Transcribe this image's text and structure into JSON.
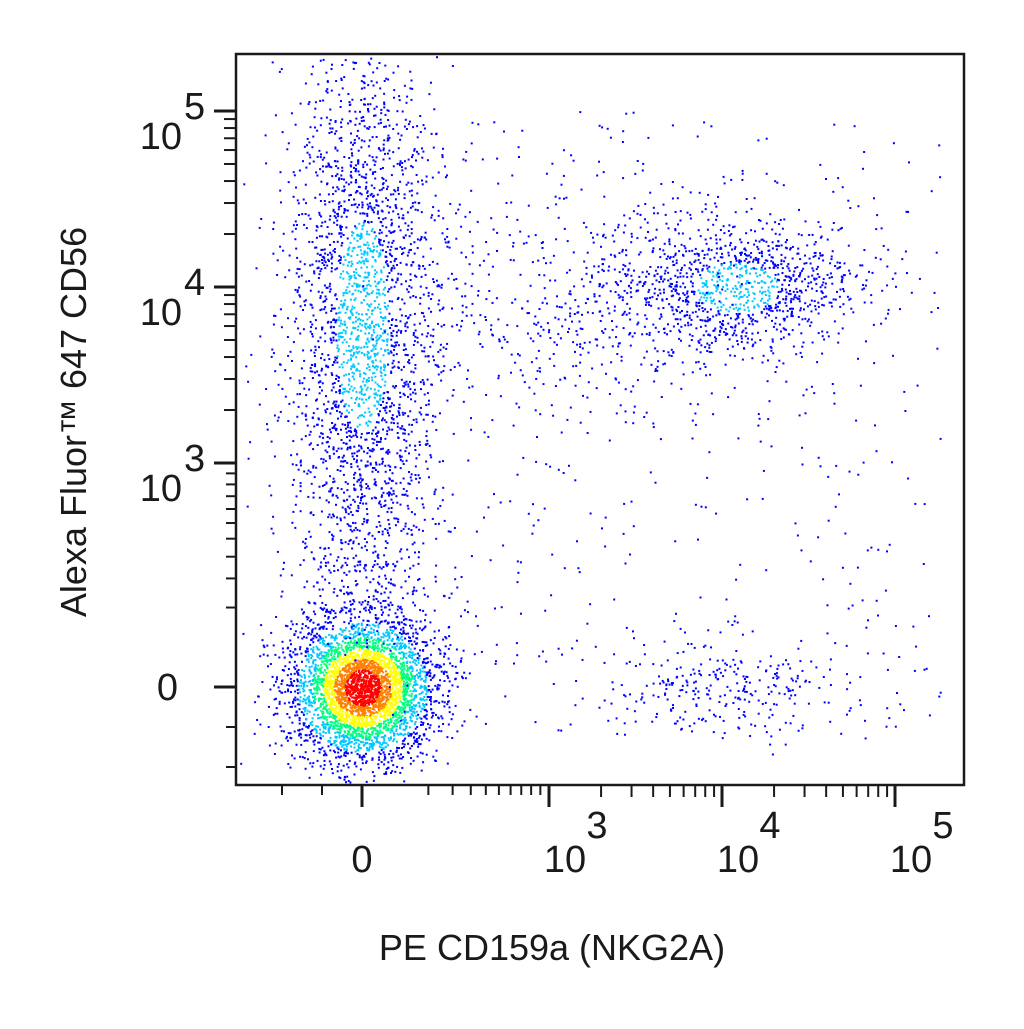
{
  "chart_data": {
    "type": "scatter",
    "subtype": "flow-cytometry-pseudocolor-density",
    "title": "",
    "xlabel": "PE CD159a (NKG2A)",
    "ylabel": "Alexa Fluor™ 647 CD56",
    "x_scale": "biexponential",
    "y_scale": "biexponential",
    "xlim": [
      -300,
      200000
    ],
    "ylim": [
      -300,
      250000
    ],
    "x_ticks": [
      {
        "value": 0,
        "label": "0"
      },
      {
        "value": 1000,
        "base": "10",
        "exp": "3"
      },
      {
        "value": 10000,
        "base": "10",
        "exp": "4"
      },
      {
        "value": 100000,
        "base": "10",
        "exp": "5"
      }
    ],
    "y_ticks": [
      {
        "value": 0,
        "label": "0"
      },
      {
        "value": 1000,
        "base": "10",
        "exp": "3"
      },
      {
        "value": 10000,
        "base": "10",
        "exp": "4"
      },
      {
        "value": 100000,
        "base": "10",
        "exp": "5"
      }
    ],
    "grid": false,
    "legend": "none",
    "density_colors": [
      "#0000ff",
      "#00c8ff",
      "#00ff80",
      "#ffff00",
      "#ff8000",
      "#ff0000"
    ],
    "populations": [
      {
        "x_center": 0,
        "y_center": 0,
        "x_spread": 90,
        "y_spread": 90,
        "relative_size": 0.45,
        "peak_density": "high"
      },
      {
        "x_center": 0,
        "y_center": 6000,
        "x_spread": 90,
        "y_spread": 0.55,
        "relative_size": 0.3,
        "peak_density": "medium"
      },
      {
        "x_center": 12000,
        "y_center": 10000,
        "x_spread": 0.35,
        "y_spread": 0.2,
        "relative_size": 0.12,
        "peak_density": "medium"
      },
      {
        "x_center": 1500,
        "y_center": 8000,
        "x_spread": 0.5,
        "y_spread": 0.35,
        "relative_size": 0.05,
        "peak_density": "low"
      },
      {
        "x_center": 10000,
        "y_center": 0,
        "x_spread": 0.35,
        "y_spread": 60,
        "relative_size": 0.03,
        "peak_density": "low"
      }
    ]
  }
}
